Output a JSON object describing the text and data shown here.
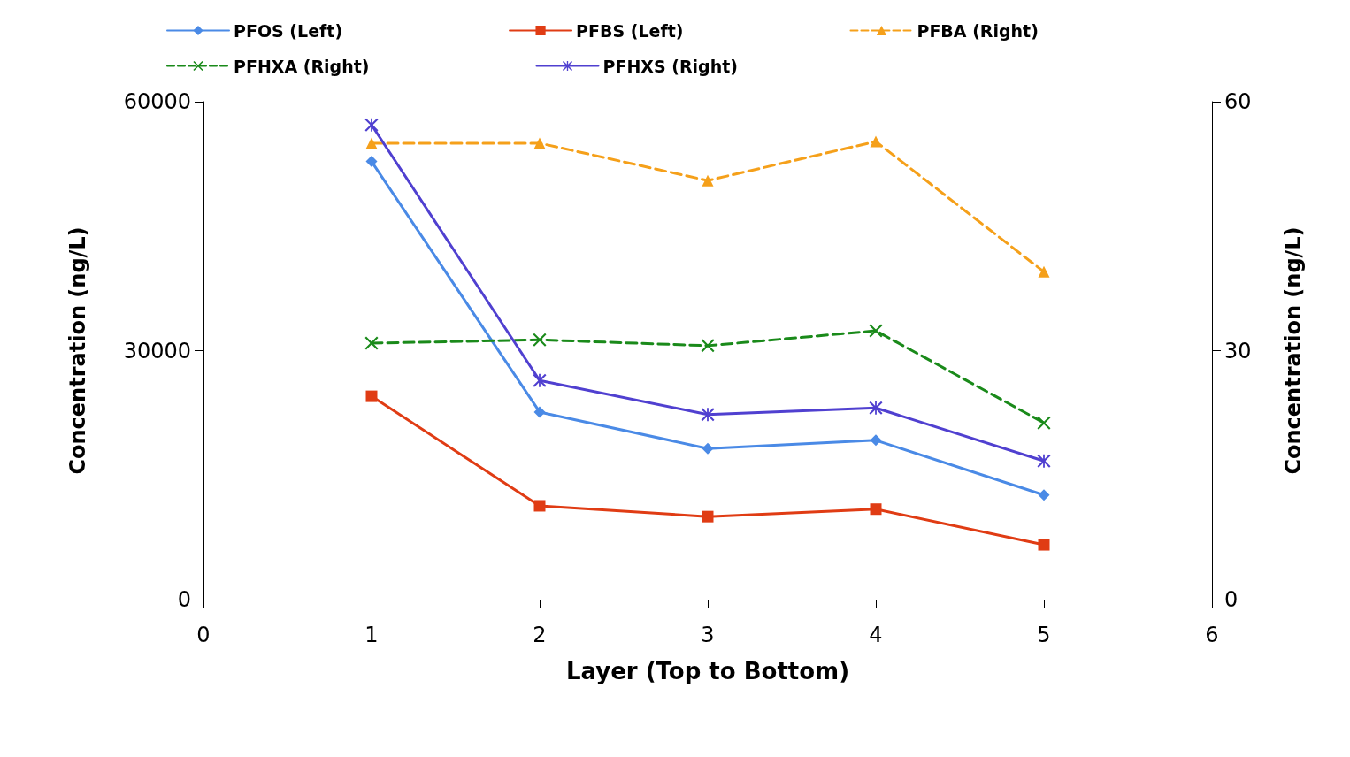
{
  "chart_data": {
    "type": "line",
    "xlabel": "Layer (Top to Bottom)",
    "ylabel": "Concentration (ng/L)",
    "y2label": "Concentration (ng/L)",
    "x": [
      1,
      2,
      3,
      4,
      5
    ],
    "xlim": [
      0,
      6
    ],
    "xticks": [
      0,
      1,
      2,
      3,
      4,
      5,
      6
    ],
    "ylim": [
      0,
      60000
    ],
    "yticks": [
      0,
      30000,
      60000
    ],
    "y2lim": [
      0,
      60
    ],
    "y2ticks": [
      0,
      30,
      60
    ],
    "grid": false,
    "legend": "top",
    "series": [
      {
        "name": "PFOS (Left)",
        "color": "#4a8ae6",
        "marker": "diamond",
        "line_style": "solid",
        "values": [
          52800,
          22600,
          18200,
          19200,
          12600
        ]
      },
      {
        "name": "PFBS (Left)",
        "color": "#e03c14",
        "marker": "square",
        "line_style": "solid",
        "values": [
          24500,
          11300,
          10000,
          10900,
          6600
        ]
      },
      {
        "name": "PFBA (Right)",
        "color": "#f5a01a",
        "marker": "triangle",
        "line_style": "dashed",
        "axis": "y2",
        "values": [
          55.0,
          55.0,
          50.5,
          55.2,
          39.5
        ]
      },
      {
        "name": "PFHXA (Right)",
        "color": "#1a8a1a",
        "marker": "cross",
        "line_style": "dashed",
        "axis": "y2",
        "values": [
          30.9,
          31.3,
          30.6,
          32.4,
          21.3
        ]
      },
      {
        "name": "PFHXS (Right)",
        "color": "#5040d0",
        "marker": "star",
        "line_style": "solid",
        "axis": "y2",
        "values": [
          57.2,
          26.4,
          22.3,
          23.1,
          16.7
        ]
      }
    ]
  }
}
